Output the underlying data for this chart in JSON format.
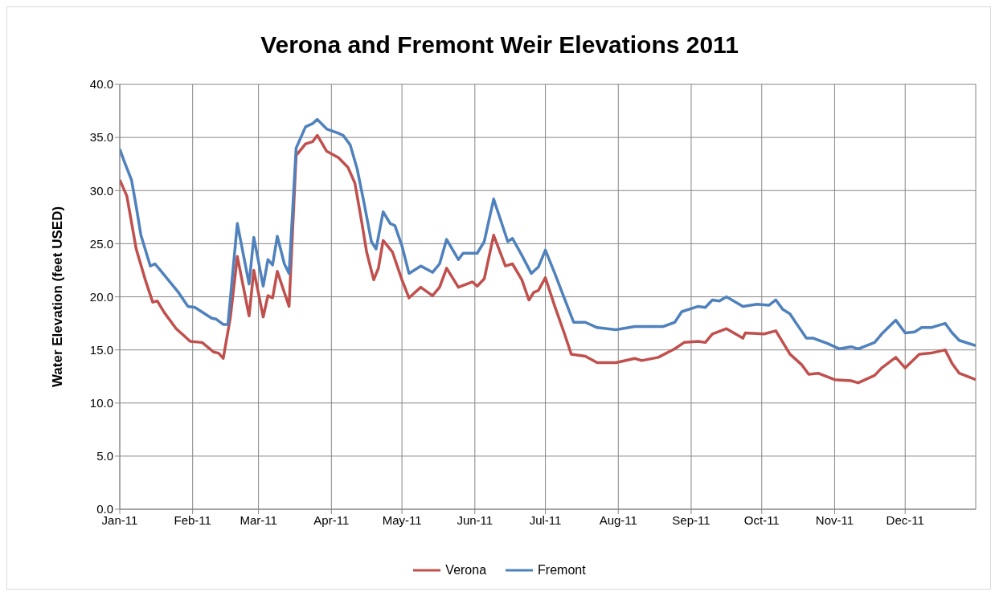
{
  "chart_data": {
    "type": "line",
    "title": "Verona and Fremont Weir Elevations 2011",
    "ylabel": "Water Elevation (feet USED)",
    "xlim": [
      "2011-01-01",
      "2011-12-31"
    ],
    "xticks": [
      {
        "value": "2011-01-01",
        "label": "Jan-11"
      },
      {
        "value": "2011-02-01",
        "label": "Feb-11"
      },
      {
        "value": "2011-03-01",
        "label": "Mar-11"
      },
      {
        "value": "2011-04-01",
        "label": "Apr-11"
      },
      {
        "value": "2011-05-01",
        "label": "May-11"
      },
      {
        "value": "2011-06-01",
        "label": "Jun-11"
      },
      {
        "value": "2011-07-01",
        "label": "Jul-11"
      },
      {
        "value": "2011-08-01",
        "label": "Aug-11"
      },
      {
        "value": "2011-09-01",
        "label": "Sep-11"
      },
      {
        "value": "2011-10-01",
        "label": "Oct-11"
      },
      {
        "value": "2011-11-01",
        "label": "Nov-11"
      },
      {
        "value": "2011-12-01",
        "label": "Dec-11"
      }
    ],
    "ylim": [
      0,
      40
    ],
    "yticks": [
      {
        "value": 0,
        "label": "0.0"
      },
      {
        "value": 5,
        "label": "5.0"
      },
      {
        "value": 10,
        "label": "10.0"
      },
      {
        "value": 15,
        "label": "15.0"
      },
      {
        "value": 20,
        "label": "20.0"
      },
      {
        "value": 25,
        "label": "25.0"
      },
      {
        "value": 30,
        "label": "30.0"
      },
      {
        "value": 35,
        "label": "35.0"
      },
      {
        "value": 40,
        "label": "40.0"
      }
    ],
    "grid": true,
    "legend": "bottom",
    "marker": "none",
    "line_style": "solid",
    "series": [
      {
        "name": "Verona",
        "color": "#c0504d",
        "x": [
          "2011-01-01",
          "2011-01-04",
          "2011-01-08",
          "2011-01-12",
          "2011-01-15",
          "2011-01-17",
          "2011-01-20",
          "2011-01-25",
          "2011-01-31",
          "2011-02-05",
          "2011-02-10",
          "2011-02-12",
          "2011-02-14",
          "2011-02-17",
          "2011-02-20",
          "2011-02-25",
          "2011-02-27",
          "2011-03-03",
          "2011-03-05",
          "2011-03-07",
          "2011-03-09",
          "2011-03-12",
          "2011-03-14",
          "2011-03-17",
          "2011-03-21",
          "2011-03-24",
          "2011-03-26",
          "2011-03-30",
          "2011-04-04",
          "2011-04-08",
          "2011-04-11",
          "2011-04-14",
          "2011-04-16",
          "2011-04-19",
          "2011-04-21",
          "2011-04-23",
          "2011-04-27",
          "2011-05-01",
          "2011-05-04",
          "2011-05-09",
          "2011-05-14",
          "2011-05-17",
          "2011-05-20",
          "2011-05-25",
          "2011-05-31",
          "2011-06-02",
          "2011-06-05",
          "2011-06-09",
          "2011-06-14",
          "2011-06-17",
          "2011-06-21",
          "2011-06-24",
          "2011-06-26",
          "2011-06-28",
          "2011-07-01",
          "2011-07-05",
          "2011-07-09",
          "2011-07-12",
          "2011-07-18",
          "2011-07-23",
          "2011-07-31",
          "2011-08-08",
          "2011-08-11",
          "2011-08-18",
          "2011-08-25",
          "2011-08-29",
          "2011-09-04",
          "2011-09-07",
          "2011-09-10",
          "2011-09-16",
          "2011-09-23",
          "2011-09-24",
          "2011-10-02",
          "2011-10-07",
          "2011-10-13",
          "2011-10-18",
          "2011-10-21",
          "2011-10-25",
          "2011-11-01",
          "2011-11-08",
          "2011-11-11",
          "2011-11-18",
          "2011-11-21",
          "2011-11-27",
          "2011-12-01",
          "2011-12-07",
          "2011-12-12",
          "2011-12-18",
          "2011-12-21",
          "2011-12-24",
          "2011-12-31"
        ],
        "values": [
          31.0,
          29.5,
          24.5,
          21.5,
          19.5,
          19.6,
          18.5,
          17.0,
          15.8,
          15.7,
          14.8,
          14.7,
          14.2,
          18.0,
          23.8,
          18.2,
          22.5,
          18.1,
          20.1,
          19.9,
          22.4,
          20.4,
          19.1,
          33.3,
          34.4,
          34.6,
          35.2,
          33.7,
          33.1,
          32.2,
          30.7,
          26.9,
          24.2,
          21.6,
          22.7,
          25.3,
          24.2,
          21.6,
          19.9,
          20.9,
          20.1,
          20.9,
          22.7,
          20.9,
          21.4,
          21.0,
          21.7,
          25.8,
          22.9,
          23.1,
          21.6,
          19.7,
          20.4,
          20.6,
          21.8,
          19.1,
          16.6,
          14.6,
          14.4,
          13.8,
          13.8,
          14.2,
          14.0,
          14.3,
          15.1,
          15.7,
          15.8,
          15.7,
          16.5,
          17.0,
          16.1,
          16.6,
          16.5,
          16.8,
          14.6,
          13.6,
          12.7,
          12.8,
          12.2,
          12.1,
          11.9,
          12.6,
          13.3,
          14.3,
          13.3,
          14.6,
          14.7,
          15.0,
          13.7,
          12.8,
          12.2
        ]
      },
      {
        "name": "Fremont",
        "color": "#4f81bd",
        "x": [
          "2011-01-01",
          "2011-01-03",
          "2011-01-06",
          "2011-01-08",
          "2011-01-10",
          "2011-01-14",
          "2011-01-16",
          "2011-01-19",
          "2011-01-26",
          "2011-01-30",
          "2011-02-02",
          "2011-02-09",
          "2011-02-11",
          "2011-02-14",
          "2011-02-16",
          "2011-02-20",
          "2011-02-25",
          "2011-02-27",
          "2011-03-03",
          "2011-03-05",
          "2011-03-07",
          "2011-03-09",
          "2011-03-12",
          "2011-03-14",
          "2011-03-17",
          "2011-03-21",
          "2011-03-24",
          "2011-03-26",
          "2011-03-30",
          "2011-04-04",
          "2011-04-06",
          "2011-04-09",
          "2011-04-12",
          "2011-04-15",
          "2011-04-18",
          "2011-04-20",
          "2011-04-23",
          "2011-04-26",
          "2011-04-28",
          "2011-05-01",
          "2011-05-04",
          "2011-05-09",
          "2011-05-14",
          "2011-05-17",
          "2011-05-20",
          "2011-05-25",
          "2011-05-27",
          "2011-05-31",
          "2011-06-02",
          "2011-06-05",
          "2011-06-09",
          "2011-06-12",
          "2011-06-15",
          "2011-06-17",
          "2011-06-21",
          "2011-06-25",
          "2011-06-28",
          "2011-07-01",
          "2011-07-05",
          "2011-07-09",
          "2011-07-13",
          "2011-07-18",
          "2011-07-23",
          "2011-07-31",
          "2011-08-08",
          "2011-08-20",
          "2011-08-25",
          "2011-08-28",
          "2011-09-04",
          "2011-09-07",
          "2011-09-10",
          "2011-09-13",
          "2011-09-16",
          "2011-09-23",
          "2011-09-29",
          "2011-10-04",
          "2011-10-07",
          "2011-10-10",
          "2011-10-13",
          "2011-10-16",
          "2011-10-20",
          "2011-10-23",
          "2011-10-29",
          "2011-11-03",
          "2011-11-08",
          "2011-11-11",
          "2011-11-18",
          "2011-11-21",
          "2011-11-27",
          "2011-12-01",
          "2011-12-05",
          "2011-12-08",
          "2011-12-12",
          "2011-12-18",
          "2011-12-21",
          "2011-12-24",
          "2011-12-31"
        ],
        "values": [
          33.9,
          32.7,
          31.0,
          28.5,
          25.8,
          22.9,
          23.1,
          22.3,
          20.4,
          19.1,
          19.0,
          18.0,
          17.9,
          17.4,
          17.4,
          26.9,
          21.2,
          25.6,
          21.0,
          23.5,
          23.0,
          25.7,
          23.1,
          22.2,
          34.0,
          36.0,
          36.3,
          36.7,
          35.8,
          35.4,
          35.2,
          34.3,
          32.0,
          28.7,
          25.2,
          24.5,
          28.0,
          26.9,
          26.7,
          24.8,
          22.2,
          22.9,
          22.3,
          23.1,
          25.4,
          23.5,
          24.1,
          24.1,
          24.1,
          25.2,
          29.2,
          27.2,
          25.2,
          25.5,
          23.9,
          22.2,
          22.8,
          24.4,
          22.2,
          19.9,
          17.6,
          17.6,
          17.1,
          16.9,
          17.2,
          17.2,
          17.6,
          18.6,
          19.1,
          19.0,
          19.7,
          19.6,
          20.0,
          19.1,
          19.3,
          19.2,
          19.7,
          18.8,
          18.4,
          17.4,
          16.1,
          16.1,
          15.6,
          15.1,
          15.3,
          15.1,
          15.7,
          16.5,
          17.8,
          16.6,
          16.7,
          17.1,
          17.1,
          17.5,
          16.6,
          15.9,
          15.4
        ]
      }
    ]
  }
}
